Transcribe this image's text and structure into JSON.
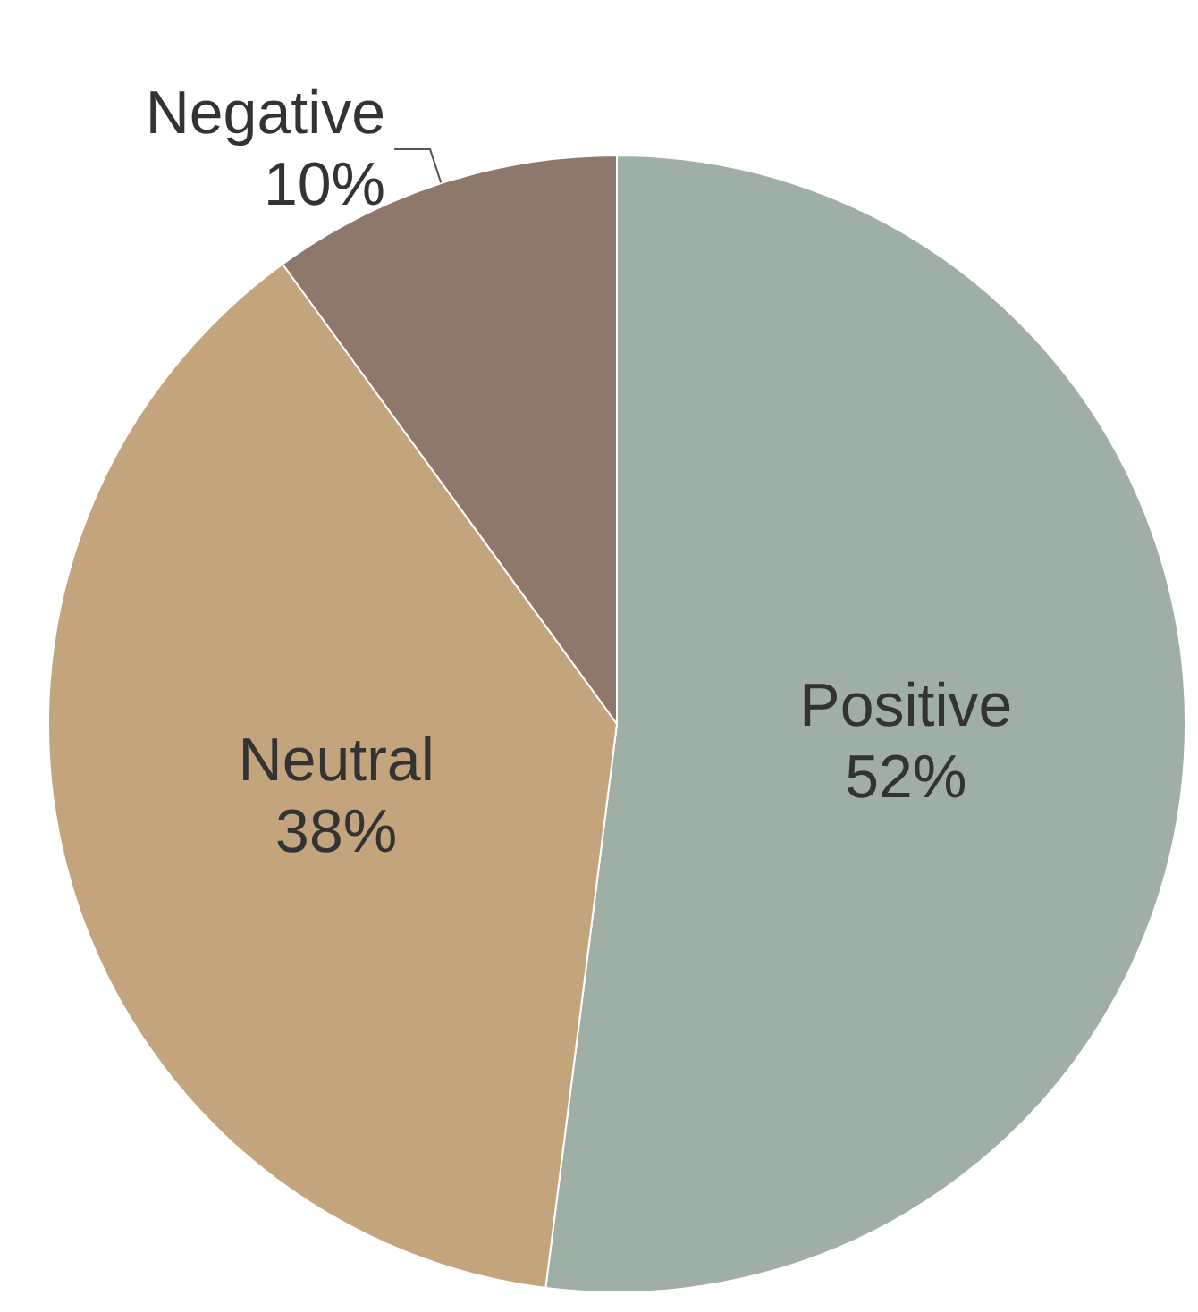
{
  "chart_data": {
    "type": "pie",
    "categories": [
      "Positive",
      "Neutral",
      "Negative"
    ],
    "values": [
      52,
      38,
      10
    ],
    "value_labels": [
      "52%",
      "38%",
      "10%"
    ],
    "colors": [
      "#a0afa6",
      "#c3a47c",
      "#8e776b"
    ],
    "legend": false
  }
}
